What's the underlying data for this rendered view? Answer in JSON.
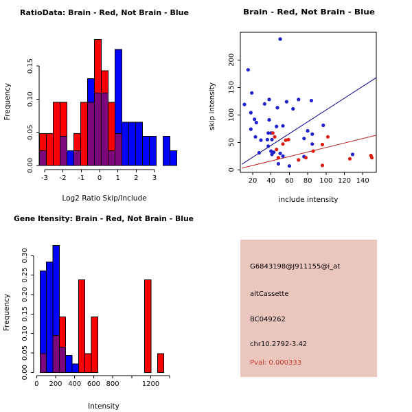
{
  "colors": {
    "hist_red": "#FB0000",
    "hist_blue": "#0202F8",
    "overlap_purple": "#7C067C",
    "point_blue": "#2222CC",
    "point_red": "#DE1D12",
    "line_blue": "#00008B",
    "line_red": "#BB2222",
    "box_bg": "#EAC6BE",
    "pval_red": "#C33A2A",
    "axis_black": "#000000"
  },
  "chart_data": [
    {
      "type": "bar",
      "name": "ratio-histogram",
      "title": "RatioData: Brain - Red, Not Brain - Blue",
      "xlabel": "Log2 Ratio Skip/Include",
      "ylabel": "Frequency",
      "legend": [
        {
          "name": "Brain",
          "color": "red"
        },
        {
          "name": "Not Brain",
          "color": "blue"
        }
      ],
      "x_ticks": {
        "values": [
          -3,
          -2,
          -1,
          0,
          1,
          2,
          3
        ],
        "labels": [
          "-3",
          "-2",
          "-1",
          "0",
          "1",
          "2",
          "3"
        ]
      },
      "y_ticks": {
        "values": [
          0,
          0.05,
          0.1,
          0.15
        ],
        "labels": [
          "0.00",
          "0.05",
          "0.10",
          "0.15"
        ]
      },
      "xlim": [
        -3.5,
        4.0
      ],
      "ylim": [
        0,
        0.19
      ],
      "grid": false,
      "bars": [
        {
          "x": -3.28,
          "w": 0.375,
          "red": 0.048,
          "blue": 0.022
        },
        {
          "x": -2.905,
          "w": 0.375,
          "red": 0.048,
          "blue": 0
        },
        {
          "x": -2.53,
          "w": 0.375,
          "red": 0.095,
          "blue": 0
        },
        {
          "x": -2.155,
          "w": 0.375,
          "red": 0.095,
          "blue": 0.044
        },
        {
          "x": -1.78,
          "w": 0.375,
          "red": 0,
          "blue": 0.022
        },
        {
          "x": -1.405,
          "w": 0.375,
          "red": 0.048,
          "blue": 0.022
        },
        {
          "x": -1.03,
          "w": 0.375,
          "red": 0.095,
          "blue": 0
        },
        {
          "x": -0.655,
          "w": 0.375,
          "red": 0.095,
          "blue": 0.131
        },
        {
          "x": -0.28,
          "w": 0.375,
          "red": 0.19,
          "blue": 0.109
        },
        {
          "x": 0.095,
          "w": 0.375,
          "red": 0.143,
          "blue": 0.109
        },
        {
          "x": 0.47,
          "w": 0.375,
          "red": 0.095,
          "blue": 0.022
        },
        {
          "x": 0.845,
          "w": 0.375,
          "red": 0.048,
          "blue": 0.175
        },
        {
          "x": 1.22,
          "w": 0.375,
          "red": 0,
          "blue": 0.065
        },
        {
          "x": 1.595,
          "w": 0.375,
          "red": 0,
          "blue": 0.065
        },
        {
          "x": 1.97,
          "w": 0.375,
          "red": 0,
          "blue": 0.065
        },
        {
          "x": 2.345,
          "w": 0.375,
          "red": 0,
          "blue": 0.044
        },
        {
          "x": 2.72,
          "w": 0.375,
          "red": 0,
          "blue": 0.044
        },
        {
          "x": 3.47,
          "w": 0.375,
          "red": 0,
          "blue": 0.044
        },
        {
          "x": 3.845,
          "w": 0.375,
          "red": 0,
          "blue": 0.022
        }
      ]
    },
    {
      "type": "scatter",
      "name": "intensity-scatter",
      "title": "Brain - Red, Not Brain - Blue",
      "xlabel": "include intensity",
      "ylabel": "skip intensity",
      "x_ticks": {
        "values": [
          20,
          40,
          60,
          80,
          100,
          120,
          140
        ],
        "labels": [
          "20",
          "40",
          "60",
          "80",
          "100",
          "120",
          "140"
        ]
      },
      "y_ticks": {
        "values": [
          0,
          50,
          100,
          150,
          200
        ],
        "labels": [
          "0",
          "50",
          "100",
          "150",
          "200"
        ]
      },
      "xlim": [
        6,
        155
      ],
      "ylim": [
        0,
        250
      ],
      "grid": false,
      "series": [
        {
          "name": "not-brain-points",
          "label": "Not Brain",
          "color_key": "point_blue",
          "points": [
            [
              50,
              238
            ],
            [
              15,
              182
            ],
            [
              19,
              140
            ],
            [
              11,
              119
            ],
            [
              33,
              120
            ],
            [
              38,
              128
            ],
            [
              47,
              113
            ],
            [
              57,
              124
            ],
            [
              64,
              111
            ],
            [
              70,
              128
            ],
            [
              84,
              126
            ],
            [
              18,
              104
            ],
            [
              22,
              92
            ],
            [
              24,
              86
            ],
            [
              38,
              91
            ],
            [
              46,
              79
            ],
            [
              53,
              80
            ],
            [
              97,
              81
            ],
            [
              80,
              71
            ],
            [
              85,
              65
            ],
            [
              76,
              57
            ],
            [
              18,
              74
            ],
            [
              23,
              60
            ],
            [
              29,
              54
            ],
            [
              37,
              67
            ],
            [
              40,
              67
            ],
            [
              36,
              55
            ],
            [
              41,
              55
            ],
            [
              37,
              43
            ],
            [
              85,
              47
            ],
            [
              27,
              31
            ],
            [
              40,
              34
            ],
            [
              41,
              28
            ],
            [
              43,
              32
            ],
            [
              50,
              30
            ],
            [
              53,
              25
            ],
            [
              48,
              11
            ],
            [
              60,
              7
            ],
            [
              76,
              24
            ],
            [
              129,
              28
            ]
          ]
        },
        {
          "name": "brain-points",
          "label": "Brain",
          "color_key": "point_red",
          "points": [
            [
              42,
              67
            ],
            [
              44,
              60
            ],
            [
              46,
              37
            ],
            [
              53,
              47
            ],
            [
              56,
              54
            ],
            [
              59,
              55
            ],
            [
              48,
              22
            ],
            [
              70,
              18
            ],
            [
              78,
              22
            ],
            [
              86,
              34
            ],
            [
              96,
              46
            ],
            [
              102,
              60
            ],
            [
              96,
              8
            ],
            [
              126,
              20
            ],
            [
              149,
              26
            ],
            [
              150,
              22
            ]
          ]
        }
      ],
      "lines": [
        {
          "name": "not-brain-fit-line",
          "color_key": "line_blue",
          "from": [
            8,
            10
          ],
          "to": [
            155,
            168
          ]
        },
        {
          "name": "brain-fit-line",
          "color_key": "line_red",
          "from": [
            8,
            3
          ],
          "to": [
            155,
            63
          ]
        }
      ]
    },
    {
      "type": "bar",
      "name": "gene-intensity-histogram",
      "title": "Gene Itensity: Brain - Red, Not Brain - Blue",
      "xlabel": "Intensity",
      "ylabel": "Frequency",
      "legend": [
        {
          "name": "Brain",
          "color": "red"
        },
        {
          "name": "Not Brain",
          "color": "blue"
        }
      ],
      "x_ticks": {
        "values": [
          0,
          200,
          400,
          600,
          800,
          1000,
          1200,
          1400
        ],
        "labels": [
          "0",
          "200",
          "400",
          "600",
          "800",
          "",
          "1200",
          ""
        ]
      },
      "y_ticks": {
        "values": [
          0,
          0.05,
          0.1,
          0.15,
          0.2,
          0.25,
          0.3
        ],
        "labels": [
          "0.00",
          "0.05",
          "0.10",
          "0.15",
          "0.20",
          "0.25",
          "0.30"
        ]
      },
      "xlim": [
        -30,
        1400
      ],
      "ylim": [
        0,
        0.335
      ],
      "grid": false,
      "bars": [
        {
          "x": 36,
          "w": 67.5,
          "red": 0.048,
          "blue": 0.261
        },
        {
          "x": 103.5,
          "w": 67.5,
          "red": 0,
          "blue": 0.284
        },
        {
          "x": 171,
          "w": 67.5,
          "red": 0.095,
          "blue": 0.326
        },
        {
          "x": 238.5,
          "w": 67.5,
          "red": 0.143,
          "blue": 0.065
        },
        {
          "x": 306,
          "w": 67.5,
          "red": 0,
          "blue": 0.044
        },
        {
          "x": 373.5,
          "w": 67.5,
          "red": 0,
          "blue": 0.022
        },
        {
          "x": 441,
          "w": 67.5,
          "red": 0.238,
          "blue": 0
        },
        {
          "x": 508.5,
          "w": 67.5,
          "red": 0.048,
          "blue": 0
        },
        {
          "x": 576,
          "w": 67.5,
          "red": 0.143,
          "blue": 0
        },
        {
          "x": 1136,
          "w": 67.5,
          "red": 0.238,
          "blue": 0
        },
        {
          "x": 1271,
          "w": 67.5,
          "red": 0.048,
          "blue": 0
        }
      ]
    }
  ],
  "info_box": {
    "lines": [
      {
        "text": "G6843198@J911155@i_at",
        "color": "black"
      },
      {
        "text": "altCassette",
        "color": "black"
      },
      {
        "text": "BC049262",
        "color": "black"
      },
      {
        "text": "chr10.2792-3.42",
        "color": "black"
      },
      {
        "text": "Pval: 0.000333",
        "color": "red"
      }
    ]
  }
}
